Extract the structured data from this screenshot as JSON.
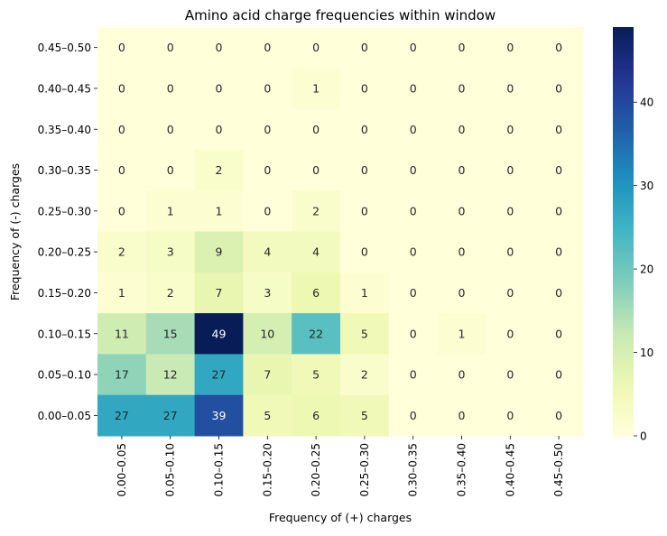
{
  "chart_data": {
    "type": "heatmap",
    "title": "Amino acid charge frequencies within window",
    "xlabel": "Frequency of (+) charges",
    "ylabel": "Frequency of (-) charges",
    "x_categories": [
      "0.00–0.05",
      "0.05–0.10",
      "0.10–0.15",
      "0.15–0.20",
      "0.20–0.25",
      "0.25–0.30",
      "0.30–0.35",
      "0.35–0.40",
      "0.40–0.45",
      "0.45–0.50"
    ],
    "y_categories": [
      "0.45–0.50",
      "0.40–0.45",
      "0.35–0.40",
      "0.30–0.35",
      "0.25–0.30",
      "0.20–0.25",
      "0.15–0.20",
      "0.10–0.15",
      "0.05–0.10",
      "0.00–0.05"
    ],
    "values": [
      [
        0,
        0,
        0,
        0,
        0,
        0,
        0,
        0,
        0,
        0
      ],
      [
        0,
        0,
        0,
        0,
        1,
        0,
        0,
        0,
        0,
        0
      ],
      [
        0,
        0,
        0,
        0,
        0,
        0,
        0,
        0,
        0,
        0
      ],
      [
        0,
        0,
        2,
        0,
        0,
        0,
        0,
        0,
        0,
        0
      ],
      [
        0,
        1,
        1,
        0,
        2,
        0,
        0,
        0,
        0,
        0
      ],
      [
        2,
        3,
        9,
        4,
        4,
        0,
        0,
        0,
        0,
        0
      ],
      [
        1,
        2,
        7,
        3,
        6,
        1,
        0,
        0,
        0,
        0
      ],
      [
        11,
        15,
        49,
        10,
        22,
        5,
        0,
        1,
        0,
        0
      ],
      [
        17,
        12,
        27,
        7,
        5,
        2,
        0,
        0,
        0,
        0
      ],
      [
        27,
        27,
        39,
        5,
        6,
        5,
        0,
        0,
        0,
        0
      ]
    ],
    "colorscale": "YlGnBu",
    "vmin": 0,
    "vmax": 49,
    "colorbar_ticks": [
      0,
      10,
      20,
      30,
      40
    ]
  }
}
